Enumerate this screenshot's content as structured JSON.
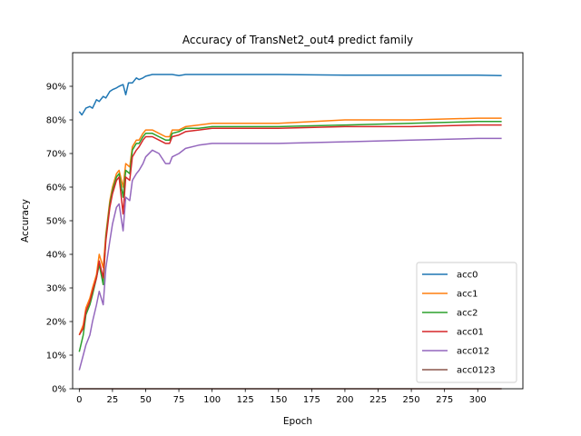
{
  "chart_data": {
    "type": "line",
    "title": "Accuracy of TransNet2_out4 predict family",
    "xlabel": "Epoch",
    "ylabel": "Accuracy",
    "xlim": [
      -5,
      334
    ],
    "ylim": [
      0,
      1.0
    ],
    "xticks": [
      0,
      25,
      50,
      75,
      100,
      125,
      150,
      175,
      200,
      225,
      250,
      275,
      300
    ],
    "yticks": [
      0,
      0.1,
      0.2,
      0.3,
      0.4,
      0.5,
      0.6,
      0.7,
      0.8,
      0.9
    ],
    "ytick_labels": [
      "0%",
      "10%",
      "20%",
      "30%",
      "40%",
      "50%",
      "60%",
      "70%",
      "80%",
      "90%"
    ],
    "grid": false,
    "legend_position": "lower-right",
    "series": [
      {
        "name": "acc0",
        "color": "#1f77b4",
        "x": [
          0,
          2,
          5,
          8,
          10,
          13,
          15,
          18,
          20,
          23,
          25,
          28,
          30,
          33,
          35,
          37,
          40,
          43,
          45,
          48,
          50,
          55,
          60,
          65,
          70,
          75,
          80,
          90,
          100,
          120,
          150,
          200,
          250,
          300,
          318
        ],
        "y": [
          0.825,
          0.815,
          0.835,
          0.84,
          0.835,
          0.86,
          0.855,
          0.87,
          0.865,
          0.885,
          0.89,
          0.895,
          0.9,
          0.905,
          0.875,
          0.91,
          0.91,
          0.925,
          0.92,
          0.925,
          0.93,
          0.935,
          0.935,
          0.935,
          0.935,
          0.932,
          0.935,
          0.935,
          0.935,
          0.935,
          0.935,
          0.933,
          0.933,
          0.933,
          0.932
        ]
      },
      {
        "name": "acc1",
        "color": "#ff7f0e",
        "x": [
          0,
          3,
          5,
          8,
          10,
          13,
          15,
          18,
          20,
          23,
          25,
          28,
          30,
          33,
          35,
          38,
          40,
          43,
          45,
          48,
          50,
          55,
          60,
          65,
          68,
          70,
          75,
          80,
          90,
          100,
          120,
          150,
          200,
          250,
          300,
          318
        ],
        "y": [
          0.16,
          0.19,
          0.24,
          0.27,
          0.3,
          0.34,
          0.4,
          0.36,
          0.46,
          0.56,
          0.6,
          0.64,
          0.65,
          0.6,
          0.67,
          0.66,
          0.72,
          0.74,
          0.74,
          0.76,
          0.77,
          0.77,
          0.76,
          0.75,
          0.75,
          0.77,
          0.77,
          0.78,
          0.785,
          0.79,
          0.79,
          0.79,
          0.8,
          0.8,
          0.805,
          0.805
        ]
      },
      {
        "name": "acc2",
        "color": "#2ca02c",
        "x": [
          0,
          3,
          5,
          8,
          10,
          13,
          15,
          18,
          20,
          23,
          25,
          28,
          30,
          33,
          35,
          38,
          40,
          43,
          45,
          48,
          50,
          55,
          60,
          65,
          68,
          70,
          75,
          80,
          90,
          100,
          120,
          150,
          200,
          250,
          300,
          318
        ],
        "y": [
          0.11,
          0.16,
          0.22,
          0.25,
          0.28,
          0.33,
          0.37,
          0.31,
          0.45,
          0.55,
          0.59,
          0.63,
          0.64,
          0.57,
          0.65,
          0.64,
          0.71,
          0.73,
          0.73,
          0.75,
          0.76,
          0.76,
          0.75,
          0.74,
          0.74,
          0.76,
          0.765,
          0.775,
          0.775,
          0.78,
          0.78,
          0.78,
          0.785,
          0.79,
          0.795,
          0.795
        ]
      },
      {
        "name": "acc01",
        "color": "#d62728",
        "x": [
          0,
          3,
          5,
          8,
          10,
          13,
          15,
          18,
          20,
          23,
          25,
          28,
          30,
          33,
          35,
          38,
          40,
          43,
          45,
          48,
          50,
          55,
          60,
          65,
          68,
          70,
          75,
          80,
          90,
          100,
          120,
          150,
          200,
          250,
          300,
          318
        ],
        "y": [
          0.16,
          0.18,
          0.23,
          0.26,
          0.29,
          0.33,
          0.38,
          0.33,
          0.44,
          0.54,
          0.58,
          0.62,
          0.63,
          0.52,
          0.63,
          0.62,
          0.69,
          0.71,
          0.72,
          0.74,
          0.75,
          0.75,
          0.74,
          0.73,
          0.73,
          0.75,
          0.755,
          0.765,
          0.77,
          0.775,
          0.775,
          0.775,
          0.78,
          0.78,
          0.785,
          0.785
        ]
      },
      {
        "name": "acc012",
        "color": "#9467bd",
        "x": [
          0,
          3,
          5,
          8,
          10,
          13,
          15,
          18,
          20,
          23,
          25,
          28,
          30,
          33,
          35,
          38,
          40,
          43,
          45,
          48,
          50,
          55,
          60,
          65,
          68,
          70,
          75,
          80,
          90,
          100,
          120,
          150,
          200,
          250,
          300,
          318
        ],
        "y": [
          0.055,
          0.1,
          0.13,
          0.16,
          0.2,
          0.25,
          0.29,
          0.25,
          0.36,
          0.44,
          0.49,
          0.54,
          0.55,
          0.47,
          0.57,
          0.56,
          0.62,
          0.64,
          0.65,
          0.67,
          0.69,
          0.71,
          0.7,
          0.67,
          0.67,
          0.69,
          0.7,
          0.715,
          0.725,
          0.73,
          0.73,
          0.73,
          0.735,
          0.74,
          0.745,
          0.745
        ]
      },
      {
        "name": "acc0123",
        "color": "#8c564b",
        "x": [
          0,
          318
        ],
        "y": [
          0.0,
          0.0
        ]
      }
    ]
  }
}
